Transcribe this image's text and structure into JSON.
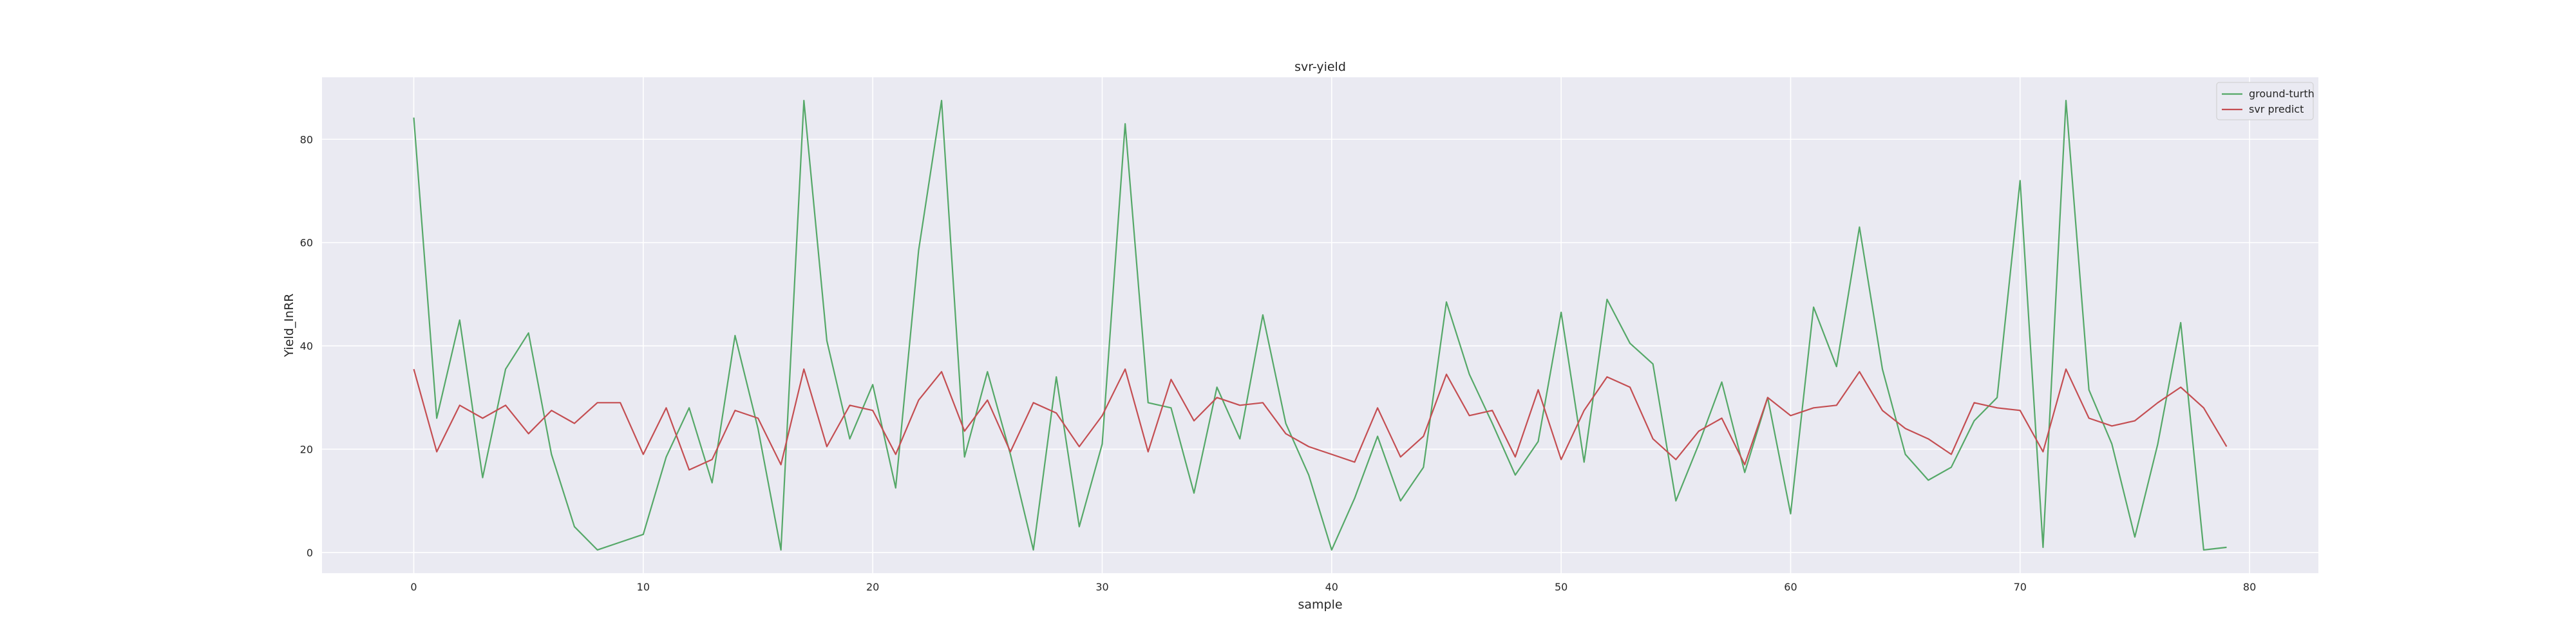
{
  "chart_data": {
    "type": "line",
    "title": "svr-yield",
    "xlabel": "sample",
    "ylabel": "Yield_InRR",
    "xlim": [
      -4,
      83
    ],
    "ylim": [
      -4,
      92
    ],
    "xticks": [
      0,
      10,
      20,
      30,
      40,
      50,
      60,
      70,
      80
    ],
    "yticks": [
      0,
      20,
      40,
      60,
      80
    ],
    "grid": true,
    "legend_position": "top-right",
    "background_color": "#eaeaf2",
    "x": [
      0,
      1,
      2,
      3,
      4,
      5,
      6,
      7,
      8,
      9,
      10,
      11,
      12,
      13,
      14,
      15,
      16,
      17,
      18,
      19,
      20,
      21,
      22,
      23,
      24,
      25,
      26,
      27,
      28,
      29,
      30,
      31,
      32,
      33,
      34,
      35,
      36,
      37,
      38,
      39,
      40,
      41,
      42,
      43,
      44,
      45,
      46,
      47,
      48,
      49,
      50,
      51,
      52,
      53,
      54,
      55,
      56,
      57,
      58,
      59,
      60,
      61,
      62,
      63,
      64,
      65,
      66,
      67,
      68,
      69,
      70,
      71,
      72,
      73,
      74,
      75,
      76,
      77,
      78,
      79
    ],
    "series": [
      {
        "name": "ground-turth",
        "color": "#55a868",
        "values": [
          84.2,
          26.0,
          45.0,
          14.5,
          35.5,
          42.5,
          19.0,
          5.0,
          0.5,
          2.0,
          3.5,
          18.5,
          28.0,
          13.5,
          42.0,
          24.0,
          0.5,
          87.5,
          41.0,
          22.0,
          32.5,
          12.5,
          58.5,
          87.5,
          18.5,
          35.0,
          19.0,
          0.5,
          34.0,
          5.0,
          21.0,
          83.0,
          29.0,
          28.0,
          11.5,
          32.0,
          22.0,
          46.0,
          25.0,
          15.0,
          0.5,
          10.5,
          22.5,
          10.0,
          16.5,
          48.5,
          34.5,
          25.0,
          15.0,
          21.5,
          46.5,
          17.5,
          49.0,
          40.5,
          36.5,
          10.0,
          21.0,
          33.0,
          15.5,
          30.0,
          7.5,
          47.5,
          36.0,
          63.0,
          35.5,
          19.0,
          14.0,
          16.5,
          25.5,
          30.0,
          72.0,
          1.0,
          87.5,
          31.5,
          21.0,
          3.0,
          21.0,
          44.5,
          0.5,
          1.0
        ]
      },
      {
        "name": "svr predict",
        "color": "#c44e52",
        "values": [
          35.5,
          19.5,
          28.5,
          26.0,
          28.5,
          23.0,
          27.5,
          25.0,
          29.0,
          29.0,
          19.0,
          28.0,
          16.0,
          18.0,
          27.5,
          26.0,
          17.0,
          35.5,
          20.5,
          28.5,
          27.5,
          19.0,
          29.5,
          35.0,
          23.5,
          29.5,
          19.5,
          29.0,
          27.0,
          20.5,
          26.5,
          35.5,
          19.5,
          33.5,
          25.5,
          30.0,
          28.5,
          29.0,
          23.0,
          20.5,
          19.0,
          17.5,
          28.0,
          18.5,
          22.5,
          34.5,
          26.5,
          27.5,
          18.5,
          31.5,
          18.0,
          27.5,
          34.0,
          32.0,
          22.0,
          18.0,
          23.5,
          26.0,
          17.0,
          30.0,
          26.5,
          28.0,
          28.5,
          35.0,
          27.5,
          24.0,
          22.0,
          19.0,
          29.0,
          28.0,
          27.5,
          19.5,
          35.5,
          26.0,
          24.5,
          25.5,
          29.0,
          32.0,
          28.0,
          20.5
        ]
      }
    ]
  }
}
